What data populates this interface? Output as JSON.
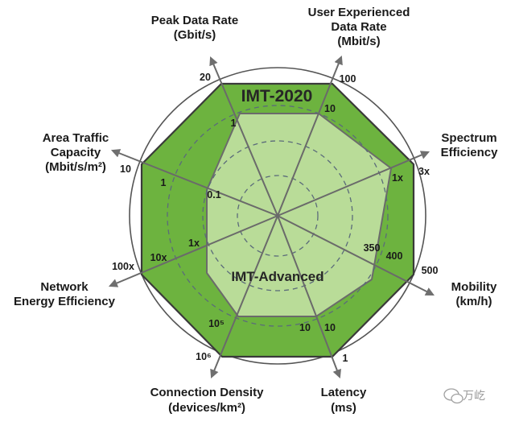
{
  "chart_data": {
    "type": "radar",
    "title": "",
    "axes": [
      {
        "name": "Peak Data Rate",
        "unit": "(Gbit/s)",
        "label_lines": [
          "Peak Data Rate",
          "(Gbit/s)"
        ],
        "ticks": [
          "1",
          "20"
        ]
      },
      {
        "name": "User Experienced Data Rate",
        "unit": "(Mbit/s)",
        "label_lines": [
          "User Experienced",
          "Data Rate",
          "(Mbit/s)"
        ],
        "ticks": [
          "10",
          "100"
        ]
      },
      {
        "name": "Spectrum Efficiency",
        "unit": "",
        "label_lines": [
          "Spectrum",
          "Efficiency"
        ],
        "ticks": [
          "1x",
          "3x"
        ]
      },
      {
        "name": "Mobility",
        "unit": "(km/h)",
        "label_lines": [
          "Mobility",
          "(km/h)"
        ],
        "ticks": [
          "350",
          "400",
          "500"
        ]
      },
      {
        "name": "Latency",
        "unit": "(ms)",
        "label_lines": [
          "Latency",
          "(ms)"
        ],
        "ticks": [
          "10",
          "10",
          "1"
        ]
      },
      {
        "name": "Connection Density",
        "unit": "(devices/km²)",
        "label_lines": [
          "Connection Density",
          "(devices/km²)"
        ],
        "ticks": [
          "10⁵",
          "10⁶"
        ]
      },
      {
        "name": "Network Energy Efficiency",
        "unit": "",
        "label_lines": [
          "Network",
          "Energy Efficiency"
        ],
        "ticks": [
          "1x",
          "10x",
          "100x"
        ]
      },
      {
        "name": "Area Traffic Capacity",
        "unit": "(Mbit/s/m²)",
        "label_lines": [
          "Area Traffic",
          "Capacity",
          "(Mbit/s/m²)"
        ],
        "ticks": [
          "0.1",
          "1",
          "10"
        ]
      }
    ],
    "series": [
      {
        "name": "IMT-2020",
        "color": "#6db33f",
        "values": [
          20,
          100,
          "3x",
          500,
          1,
          "10⁶",
          "100x",
          10
        ]
      },
      {
        "name": "IMT-Advanced",
        "color": "#b9dc98",
        "values": [
          1,
          10,
          "1x",
          350,
          10,
          "10⁵",
          "1x",
          0.1
        ]
      }
    ],
    "grid": true,
    "legend": "inline"
  },
  "watermark": "万屹"
}
